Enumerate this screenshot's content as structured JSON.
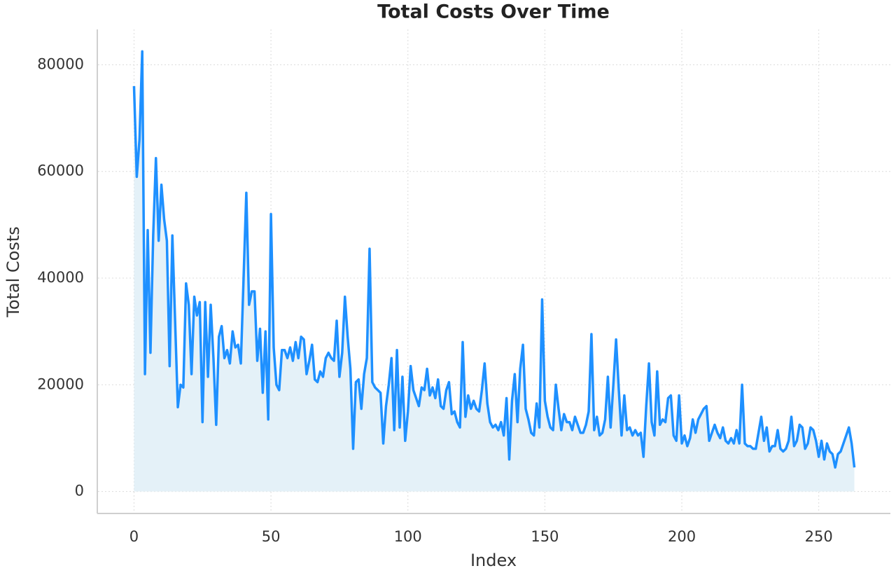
{
  "chart_data": {
    "type": "line",
    "title": "Total Costs Over Time",
    "xlabel": "Index",
    "ylabel": "Total Costs",
    "x": [
      0,
      1,
      2,
      3,
      4,
      5,
      6,
      7,
      8,
      9,
      10,
      11,
      12,
      13,
      14,
      15,
      16,
      17,
      18,
      19,
      20,
      21,
      22,
      23,
      24,
      25,
      26,
      27,
      28,
      29,
      30,
      31,
      32,
      33,
      34,
      35,
      36,
      37,
      38,
      39,
      40,
      41,
      42,
      43,
      44,
      45,
      46,
      47,
      48,
      49,
      50,
      51,
      52,
      53,
      54,
      55,
      56,
      57,
      58,
      59,
      60,
      61,
      62,
      63,
      64,
      65,
      66,
      67,
      68,
      69,
      70,
      71,
      72,
      73,
      74,
      75,
      76,
      77,
      78,
      79,
      80,
      81,
      82,
      83,
      84,
      85,
      86,
      87,
      88,
      89,
      90,
      91,
      92,
      93,
      94,
      95,
      96,
      97,
      98,
      99,
      100,
      101,
      102,
      103,
      104,
      105,
      106,
      107,
      108,
      109,
      110,
      111,
      112,
      113,
      114,
      115,
      116,
      117,
      118,
      119,
      120,
      121,
      122,
      123,
      124,
      125,
      126,
      127,
      128,
      129,
      130,
      131,
      132,
      133,
      134,
      135,
      136,
      137,
      138,
      139,
      140,
      141,
      142,
      143,
      144,
      145,
      146,
      147,
      148,
      149,
      150,
      151,
      152,
      153,
      154,
      155,
      156,
      157,
      158,
      159,
      160,
      161,
      162,
      163,
      164,
      165,
      166,
      167,
      168,
      169,
      170,
      171,
      172,
      173,
      174,
      175,
      176,
      177,
      178,
      179,
      180,
      181,
      182,
      183,
      184,
      185,
      186,
      187,
      188,
      189,
      190,
      191,
      192,
      193,
      194,
      195,
      196,
      197,
      198,
      199,
      200,
      201,
      202,
      203,
      204,
      205,
      206,
      207,
      208,
      209,
      210,
      211,
      212,
      213,
      214,
      215,
      216,
      217,
      218,
      219,
      220,
      221,
      222,
      223,
      224,
      225,
      226,
      227,
      228,
      229,
      230,
      231,
      232,
      233,
      234,
      235,
      236,
      237,
      238,
      239,
      240,
      241,
      242,
      243,
      244,
      245,
      246,
      247,
      248,
      249,
      250,
      251,
      252,
      253,
      254,
      255,
      256,
      257,
      258,
      259,
      260,
      261,
      262,
      263
    ],
    "series": [
      {
        "color": "#1e90ff",
        "fill": "#e4f1f8",
        "values": [
          76000,
          59000,
          66000,
          82500,
          22000,
          49000,
          26000,
          48000,
          62500,
          47000,
          57500,
          51000,
          47000,
          23500,
          48000,
          32000,
          15800,
          20000,
          19500,
          39000,
          35000,
          22000,
          36500,
          33000,
          35500,
          13000,
          35500,
          21500,
          35000,
          25000,
          12500,
          29000,
          31000,
          25000,
          26500,
          24000,
          30000,
          27000,
          27500,
          24000,
          40000,
          56000,
          35000,
          37500,
          37500,
          24500,
          30500,
          18500,
          30000,
          13500,
          52000,
          27000,
          20000,
          19000,
          26500,
          26500,
          25000,
          27000,
          24500,
          28000,
          25000,
          29000,
          28500,
          22000,
          24500,
          27500,
          21000,
          20500,
          22500,
          21500,
          25000,
          26000,
          25000,
          24500,
          32000,
          21500,
          26000,
          36500,
          29000,
          23000,
          8000,
          20500,
          21000,
          15500,
          22000,
          25000,
          45500,
          20500,
          19500,
          19000,
          18500,
          9000,
          16000,
          20000,
          25000,
          11500,
          26500,
          12000,
          21500,
          9500,
          15000,
          23500,
          19000,
          17500,
          16000,
          19500,
          19000,
          23000,
          18000,
          19500,
          17500,
          21000,
          16000,
          15500,
          19000,
          20500,
          14500,
          15000,
          13000,
          12000,
          28000,
          14000,
          18000,
          15500,
          17000,
          15500,
          15000,
          19000,
          24000,
          16500,
          13000,
          12000,
          12500,
          11500,
          13000,
          10500,
          17500,
          6000,
          17000,
          22000,
          13000,
          23000,
          27500,
          15500,
          13500,
          11000,
          10500,
          16500,
          12000,
          36000,
          17000,
          14000,
          12000,
          11500,
          20000,
          15500,
          11500,
          14500,
          13000,
          13000,
          11500,
          14000,
          12500,
          11000,
          11000,
          12500,
          15000,
          29500,
          11500,
          14000,
          10500,
          11000,
          13500,
          21500,
          12000,
          20000,
          28500,
          19000,
          10500,
          18000,
          11500,
          12000,
          10500,
          11500,
          10500,
          11000,
          6500,
          16000,
          24000,
          13000,
          10500,
          22500,
          12500,
          13500,
          13000,
          17500,
          18000,
          10500,
          9500,
          18000,
          9000,
          10500,
          8500,
          10000,
          13500,
          11000,
          13500,
          14500,
          15500,
          16000,
          9500,
          11000,
          12500,
          11000,
          10000,
          12000,
          9500,
          9000,
          10000,
          9000,
          11500,
          9000,
          20000,
          9000,
          8500,
          8500,
          8000,
          8000,
          11000,
          14000,
          9500,
          12000,
          7500,
          8500,
          8500,
          11500,
          8000,
          7500,
          8000,
          9500,
          14000,
          8500,
          9500,
          12500,
          12000,
          8000,
          9000,
          12000,
          11500,
          9500,
          6500,
          9500,
          6000,
          9000,
          7500,
          7000,
          4500,
          7000,
          7500,
          9000,
          10500,
          12000,
          9000,
          4500
        ]
      }
    ],
    "xlim": [
      -13.15,
      276.15
    ],
    "ylim": [
      -4125,
      86625
    ],
    "xticks": [
      0,
      50,
      100,
      150,
      200,
      250
    ],
    "yticks": [
      0,
      20000,
      40000,
      60000,
      80000
    ],
    "grid": true
  }
}
